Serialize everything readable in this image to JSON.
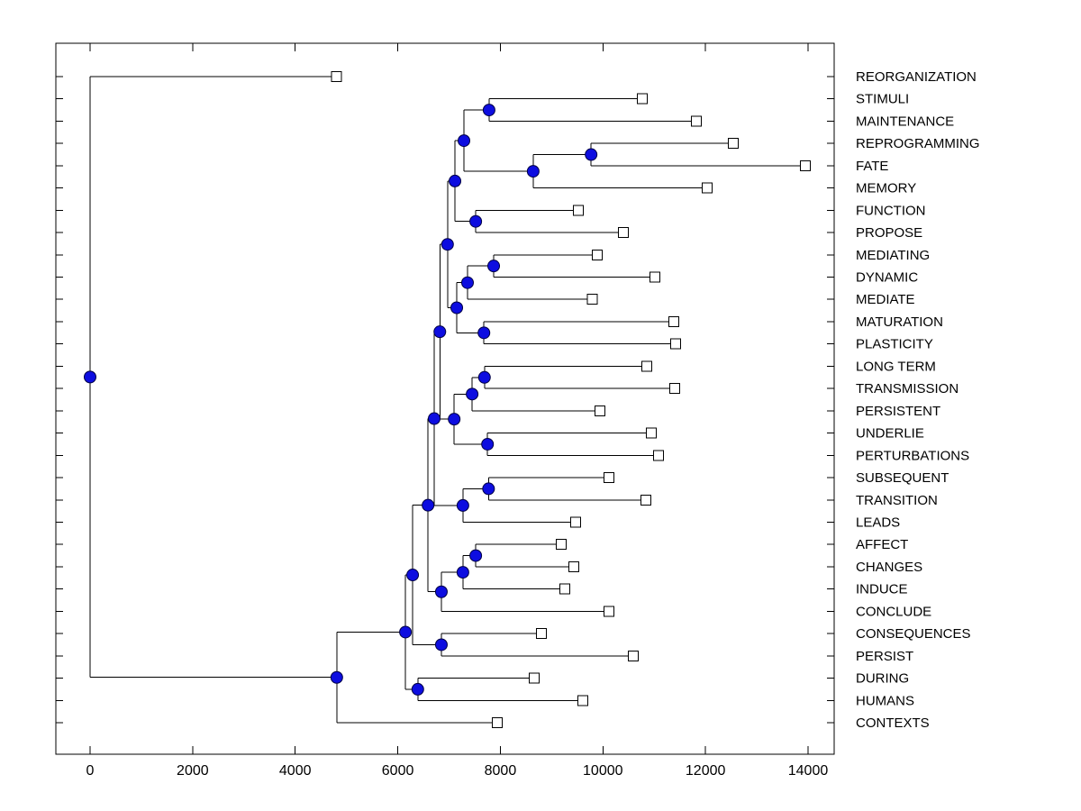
{
  "figure": {
    "background": "#ffffff"
  },
  "axes": {
    "x_tick_labels": [
      "0",
      "2000",
      "4000",
      "6000",
      "8000",
      "10000",
      "12000",
      "14000"
    ],
    "x_tick_values": [
      0,
      2000,
      4000,
      6000,
      8000,
      10000,
      12000,
      14000
    ]
  },
  "styles": {
    "branch_color": "#000000",
    "internal_node_fill": "#0d0de0",
    "internal_node_edge": "#000044",
    "leaf_marker_fill": "#ffffff",
    "leaf_marker_edge": "#000000",
    "label_color": "#000000"
  },
  "chart_data": {
    "type": "dendrogram",
    "orientation": "root-left",
    "x_axis": {
      "min": 0,
      "max": 14000,
      "tick_step": 2000
    },
    "grid": false,
    "leaves": [
      {
        "label": "REORGANIZATION",
        "value": 4800
      },
      {
        "label": "STIMULI",
        "value": 10770
      },
      {
        "label": "MAINTENANCE",
        "value": 11820
      },
      {
        "label": "REPROGRAMMING",
        "value": 12540
      },
      {
        "label": "FATE",
        "value": 13950
      },
      {
        "label": "MEMORY",
        "value": 12030
      },
      {
        "label": "FUNCTION",
        "value": 9520
      },
      {
        "label": "PROPOSE",
        "value": 10400
      },
      {
        "label": "MEDIATING",
        "value": 9890
      },
      {
        "label": "DYNAMIC",
        "value": 11010
      },
      {
        "label": "MEDIATE",
        "value": 9790
      },
      {
        "label": "MATURATION",
        "value": 11380
      },
      {
        "label": "PLASTICITY",
        "value": 11420
      },
      {
        "label": "LONG TERM",
        "value": 10860
      },
      {
        "label": "TRANSMISSION",
        "value": 11400
      },
      {
        "label": "PERSISTENT",
        "value": 9940
      },
      {
        "label": "UNDERLIE",
        "value": 10940
      },
      {
        "label": "PERTURBATIONS",
        "value": 11080
      },
      {
        "label": "SUBSEQUENT",
        "value": 10120
      },
      {
        "label": "TRANSITION",
        "value": 10840
      },
      {
        "label": "LEADS",
        "value": 9470
      },
      {
        "label": "AFFECT",
        "value": 9190
      },
      {
        "label": "CHANGES",
        "value": 9430
      },
      {
        "label": "INDUCE",
        "value": 9260
      },
      {
        "label": "CONCLUDE",
        "value": 10120
      },
      {
        "label": "CONSEQUENCES",
        "value": 8800
      },
      {
        "label": "PERSIST",
        "value": 10590
      },
      {
        "label": "DURING",
        "value": 8660
      },
      {
        "label": "HUMANS",
        "value": 9610
      },
      {
        "label": "CONTEXTS",
        "value": 7940
      }
    ],
    "internal_nodes": [
      {
        "id": "n1",
        "children": [
          "L1",
          "L2"
        ],
        "value": 7780
      },
      {
        "id": "n2",
        "children": [
          "L3",
          "L4"
        ],
        "value": 9770
      },
      {
        "id": "n3",
        "children": [
          "n2",
          "L5"
        ],
        "value": 8640
      },
      {
        "id": "n4",
        "children": [
          "n1",
          "n3"
        ],
        "value": 7290
      },
      {
        "id": "n5",
        "children": [
          "L6",
          "L7"
        ],
        "value": 7520
      },
      {
        "id": "n6",
        "children": [
          "n4",
          "n5"
        ],
        "value": 7115
      },
      {
        "id": "n7",
        "children": [
          "L8",
          "L9"
        ],
        "value": 7870
      },
      {
        "id": "n8",
        "children": [
          "n7",
          "L10"
        ],
        "value": 7360
      },
      {
        "id": "n9",
        "children": [
          "L11",
          "L12"
        ],
        "value": 7680
      },
      {
        "id": "n10",
        "children": [
          "n8",
          "n9"
        ],
        "value": 7150
      },
      {
        "id": "n11",
        "children": [
          "n6",
          "n10"
        ],
        "value": 6970
      },
      {
        "id": "n12",
        "children": [
          "L13",
          "L14"
        ],
        "value": 7690
      },
      {
        "id": "n13",
        "children": [
          "n12",
          "L15"
        ],
        "value": 7450
      },
      {
        "id": "n14",
        "children": [
          "L16",
          "L17"
        ],
        "value": 7750
      },
      {
        "id": "n15",
        "children": [
          "n13",
          "n14"
        ],
        "value": 7100
      },
      {
        "id": "n16",
        "children": [
          "n11",
          "n15"
        ],
        "value": 6820
      },
      {
        "id": "n17",
        "children": [
          "L18",
          "L19"
        ],
        "value": 7770
      },
      {
        "id": "n18",
        "children": [
          "n17",
          "L20"
        ],
        "value": 7270
      },
      {
        "id": "n19",
        "children": [
          "n16",
          "n18"
        ],
        "value": 6710
      },
      {
        "id": "n20",
        "children": [
          "L21",
          "L22"
        ],
        "value": 7520
      },
      {
        "id": "n21",
        "children": [
          "n20",
          "L23"
        ],
        "value": 7270
      },
      {
        "id": "n22",
        "children": [
          "n21",
          "L24"
        ],
        "value": 6850
      },
      {
        "id": "n23",
        "children": [
          "n19",
          "n22"
        ],
        "value": 6590
      },
      {
        "id": "n24",
        "children": [
          "L25",
          "L26"
        ],
        "value": 6850
      },
      {
        "id": "n25",
        "children": [
          "n23",
          "n24"
        ],
        "value": 6290
      },
      {
        "id": "n26",
        "children": [
          "L27",
          "L28"
        ],
        "value": 6390
      },
      {
        "id": "n27",
        "children": [
          "n25",
          "n26"
        ],
        "value": 6150
      },
      {
        "id": "n28",
        "children": [
          "n27",
          "L29"
        ],
        "value": 4810
      },
      {
        "id": "n29",
        "children": [
          "L0",
          "n28"
        ],
        "value": 0
      }
    ],
    "root": "n29"
  }
}
